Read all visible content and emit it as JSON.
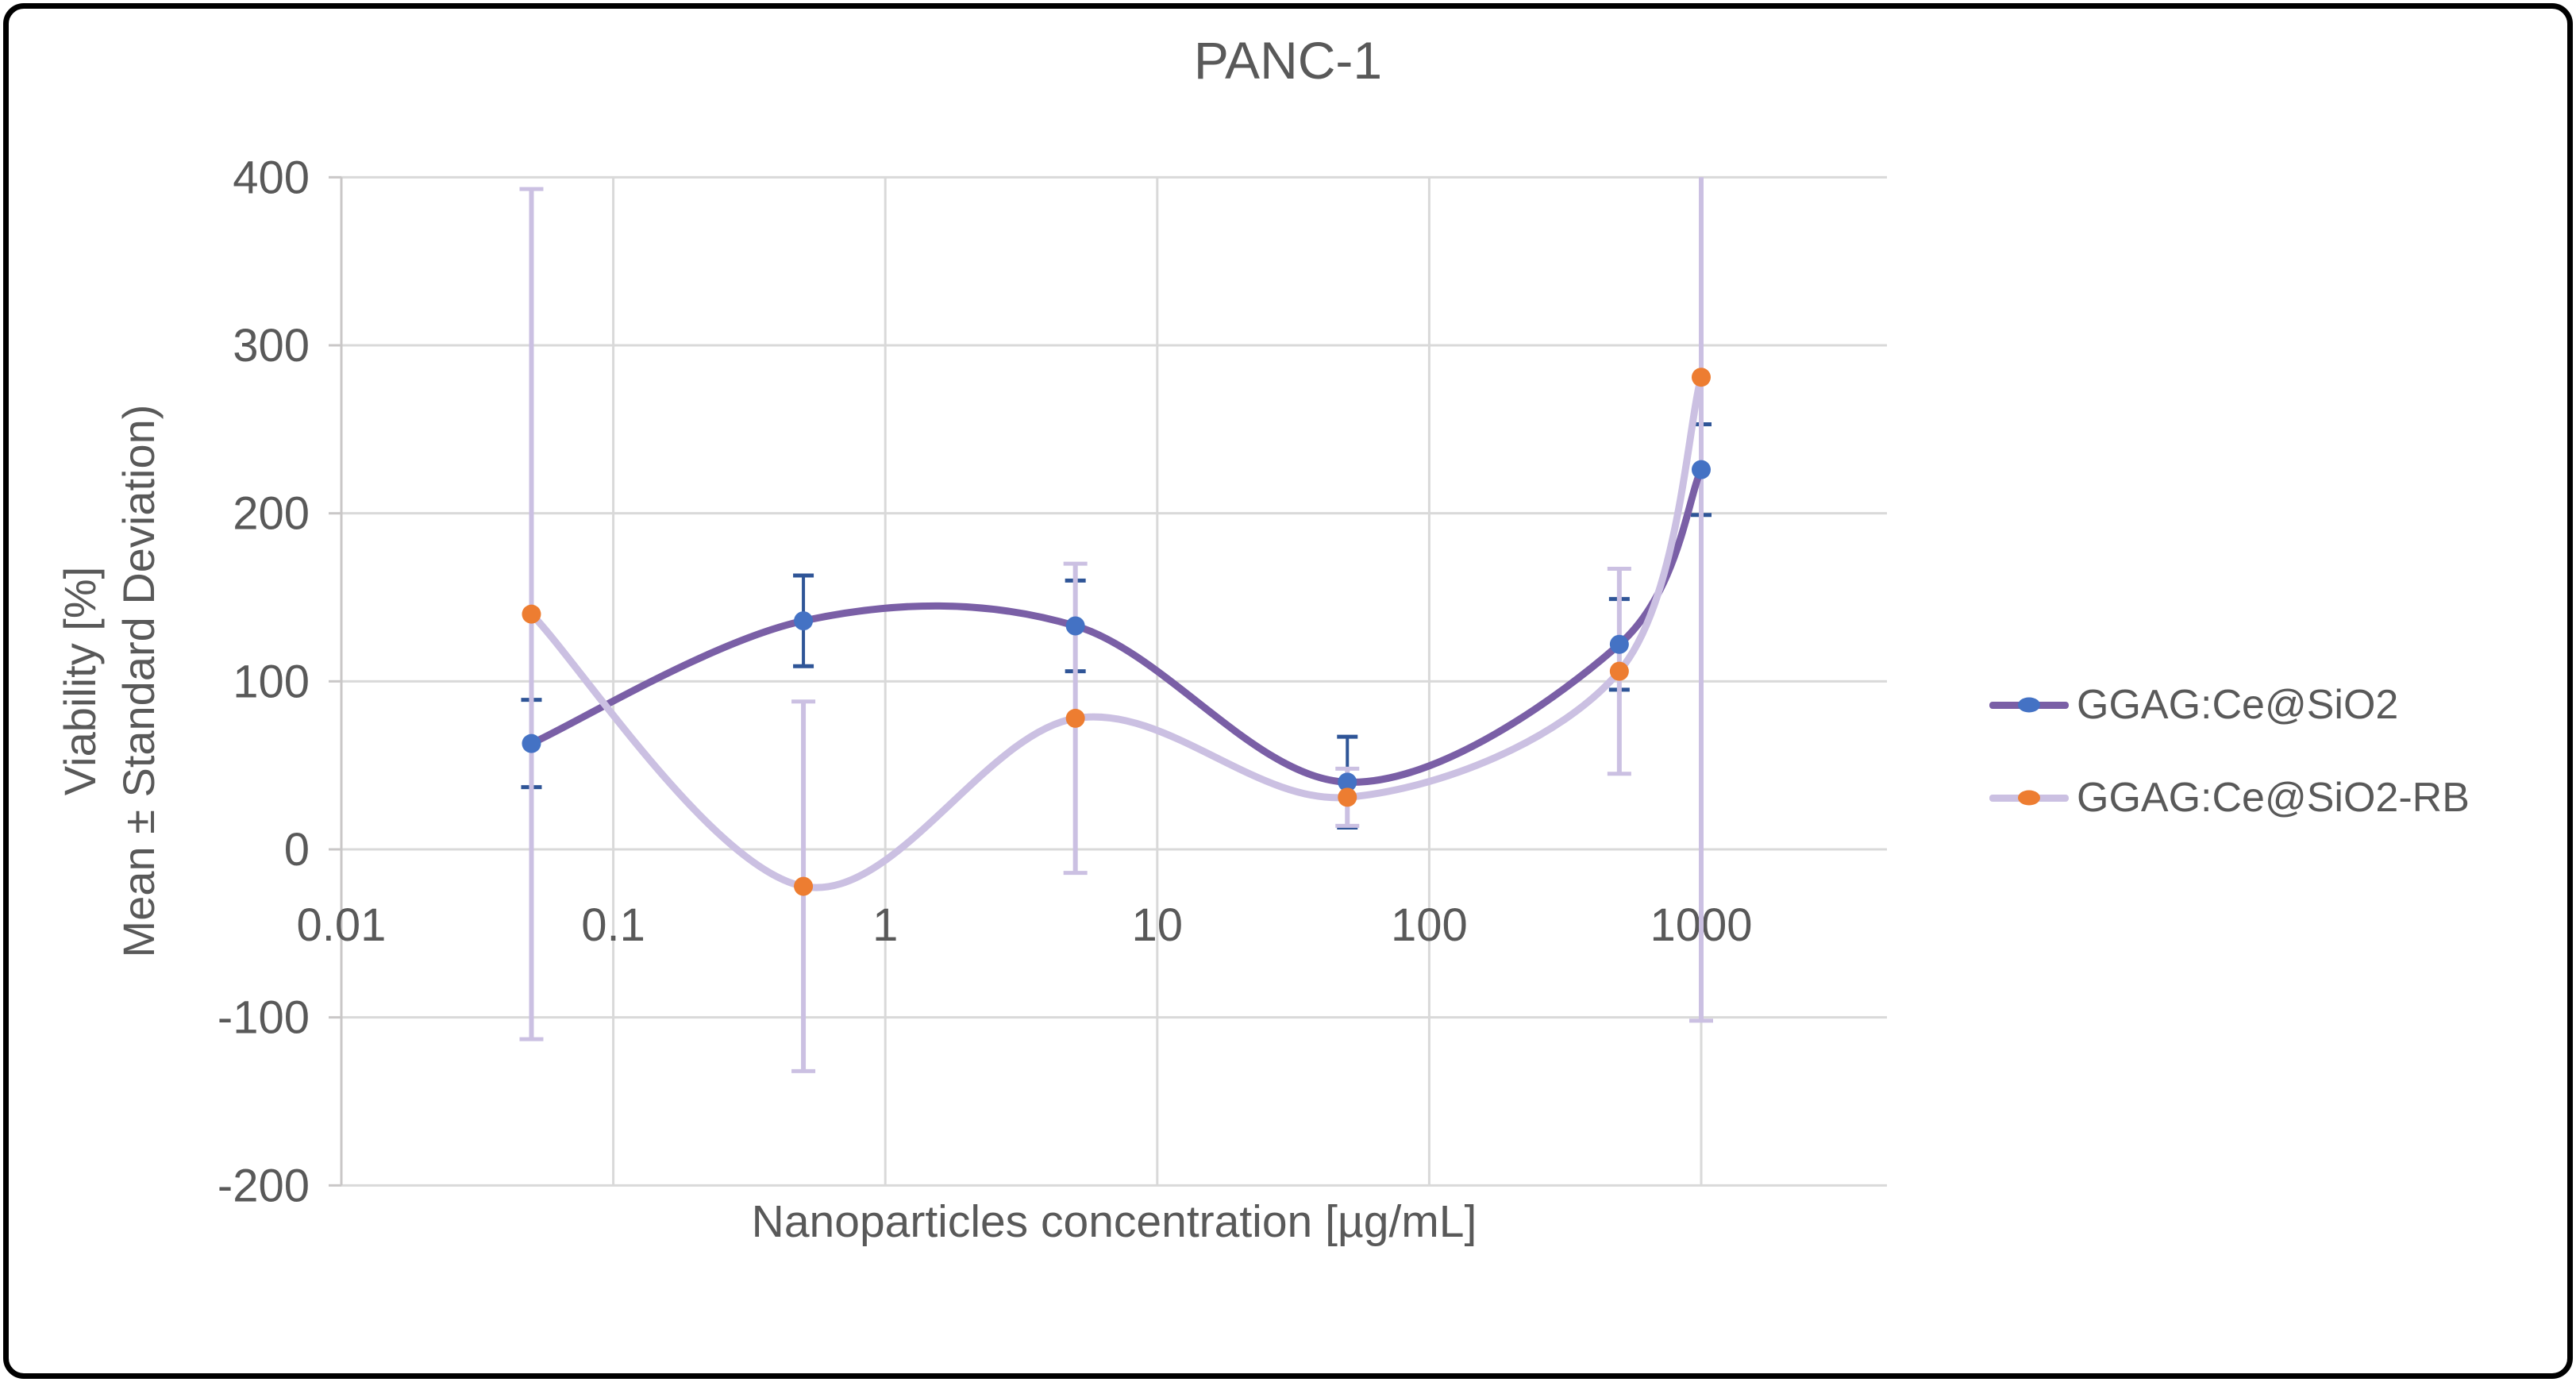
{
  "chart_data": {
    "type": "line",
    "title": "PANC-1",
    "xlabel": "Nanoparticles concentration [µg/mL]",
    "ylabel_line1": "Viability [%]",
    "ylabel_line2": "Mean ± Standard Deviation)",
    "x_scale": "log",
    "xlim": [
      0.01,
      5000
    ],
    "ylim": [
      -200,
      400
    ],
    "grid": true,
    "x_ticks": [
      0.01,
      0.1,
      1,
      10,
      100,
      1000
    ],
    "x_tick_labels": [
      "0.01",
      "0.1",
      "1",
      "10",
      "100",
      "1000"
    ],
    "y_ticks": [
      400,
      300,
      200,
      100,
      0,
      -100,
      -200
    ],
    "y_tick_labels": [
      "400",
      "300",
      "200",
      "100",
      "0",
      "-100",
      "-200"
    ],
    "legend_position": "right",
    "series": [
      {
        "name": "GGAG:Ce@SiO2",
        "line_color": "#7A5FA6",
        "marker_color": "#4472C4",
        "errorbar_color": "#2F5597",
        "x": [
          0.05,
          0.5,
          5,
          50,
          500,
          1000
        ],
        "y": [
          63,
          136,
          133,
          40,
          122,
          226
        ],
        "err": [
          26,
          27,
          27,
          27,
          27,
          27
        ]
      },
      {
        "name": "GGAG:Ce@SiO2-RB",
        "line_color": "#CBC0E2",
        "marker_color": "#ED7D31",
        "errorbar_color": "#CBC0E2",
        "x": [
          0.05,
          0.5,
          5,
          50,
          500,
          1000
        ],
        "y": [
          140,
          -22,
          78,
          31,
          106,
          281
        ],
        "err": [
          253,
          110,
          92,
          17,
          61,
          383
        ]
      }
    ]
  },
  "colors": {
    "text": "#595959",
    "gridline": "#D9D9D9",
    "axis_line": "#C9C7C7",
    "background": "#FFFFFF",
    "outer_border": "#000000"
  }
}
